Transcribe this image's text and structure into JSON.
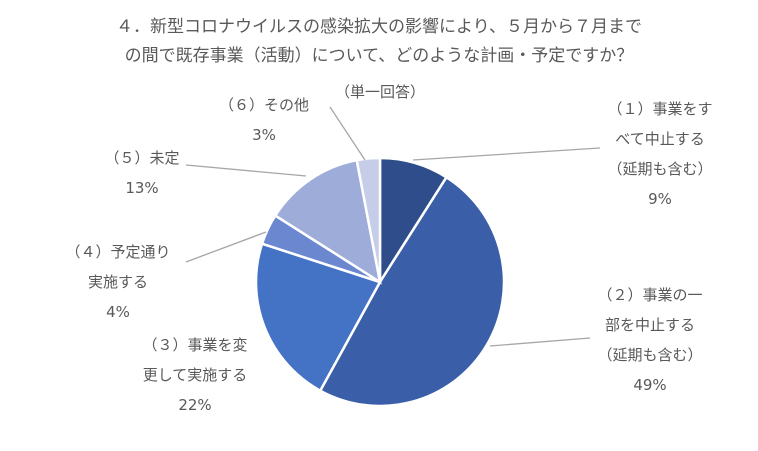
{
  "chart_data": {
    "type": "pie",
    "title_lines": [
      "４．新型コロナウイルスの感染拡大の影響により、５月から７月まで",
      "の間で既存事業（活動）について、どのような計画・予定ですか？"
    ],
    "subtitle": "（単一回答）",
    "categories": [
      "（１）事業をすべて中止する（延期も含む）",
      "（２）事業の一部を中止する（延期も含む）",
      "（３）事業を変更して実施する",
      "（４）予定通り実施する",
      "（５）未定",
      "（６）その他"
    ],
    "values": [
      9,
      49,
      22,
      4,
      13,
      3
    ],
    "value_labels": [
      "9%",
      "49%",
      "22%",
      "4%",
      "13%",
      "3%"
    ],
    "label_lines": [
      [
        "（１）事業をす",
        "べて中止する",
        "（延期も含む）"
      ],
      [
        "（２）事業の一",
        "部を中止する",
        "（延期も含む）"
      ],
      [
        "（３）事業を変",
        "更して実施する"
      ],
      [
        "（４）予定通り",
        "実施する"
      ],
      [
        "（５）未定"
      ],
      [
        "（６）その他"
      ]
    ],
    "colors": [
      "#2e4d8a",
      "#3a5fa8",
      "#4472c4",
      "#6b87d0",
      "#9dacd9",
      "#c5cde8"
    ]
  }
}
